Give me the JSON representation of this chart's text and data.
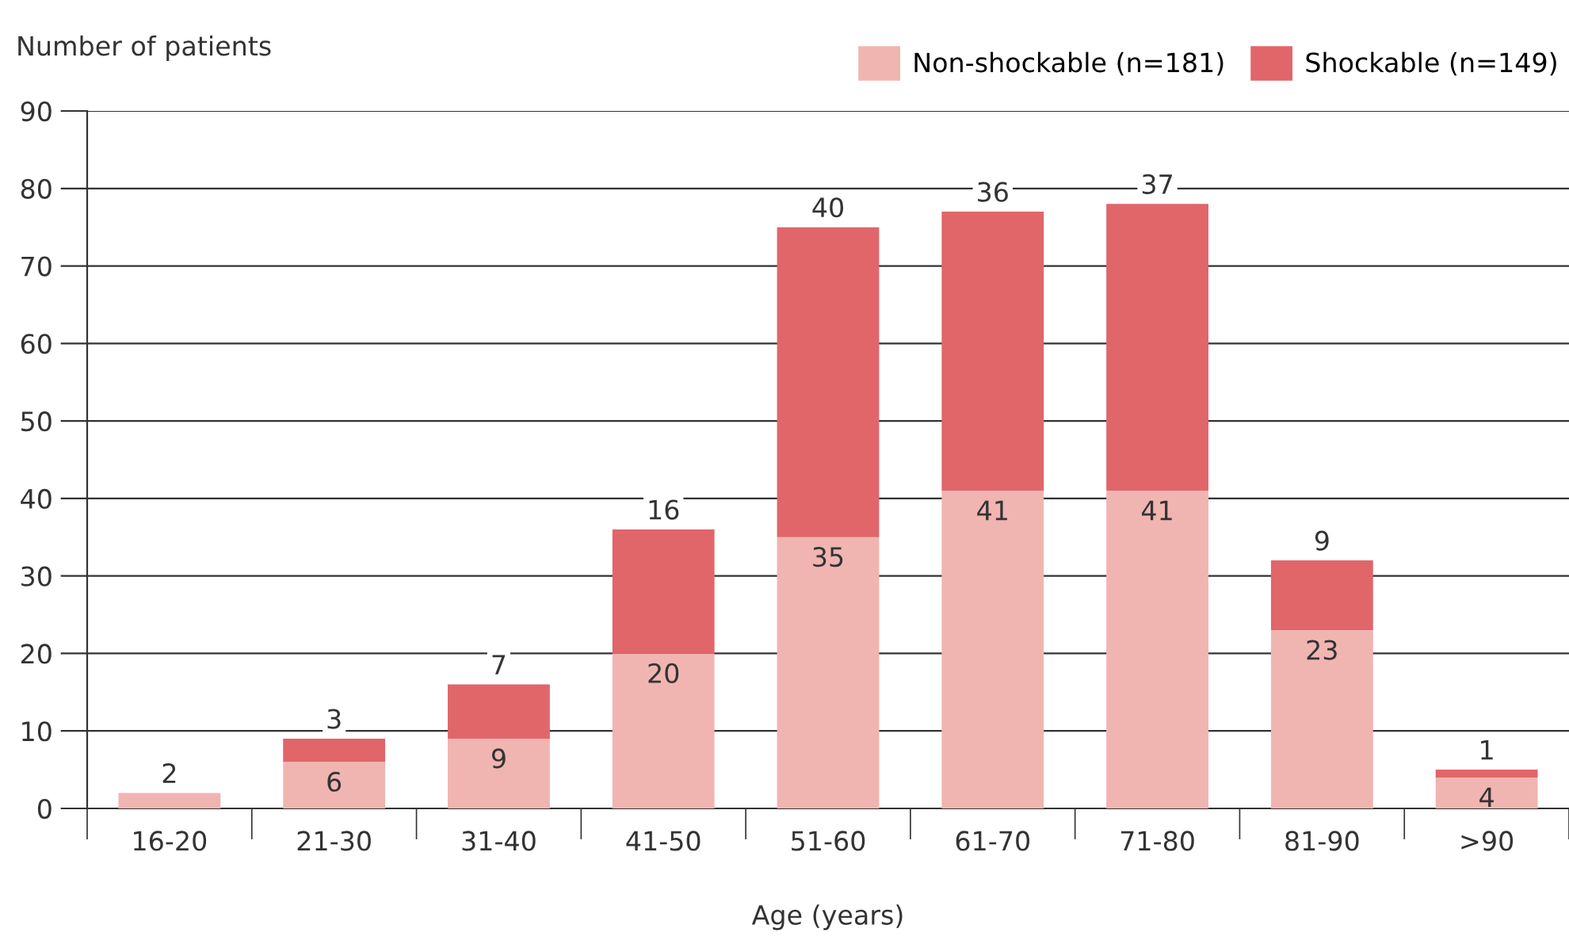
{
  "chart_data": {
    "type": "bar",
    "stacked": true,
    "xlabel": "Age (years)",
    "ylabel": "Number of patients",
    "categories": [
      "16-20",
      "21-30",
      "31-40",
      "41-50",
      "51-60",
      "61-70",
      "71-80",
      "81-90",
      ">90"
    ],
    "series": [
      {
        "name": "Non-shockable (n=181)",
        "color": "#f0b5b1",
        "values": [
          2,
          6,
          9,
          20,
          35,
          41,
          41,
          23,
          4
        ],
        "value_labels": [
          "2",
          "6",
          "9",
          "20",
          "35",
          "41",
          "41",
          "23",
          "4"
        ]
      },
      {
        "name": "Shockable (n=149)",
        "color": "#e0666a",
        "values": [
          0,
          3,
          7,
          16,
          40,
          36,
          37,
          9,
          1
        ],
        "value_labels": [
          null,
          "3",
          "7",
          "16",
          "40",
          "36",
          "37",
          "9",
          "1"
        ]
      }
    ],
    "ylim": [
      0,
      90
    ],
    "yticks": [
      0,
      10,
      20,
      30,
      40,
      50,
      60,
      70,
      80,
      90
    ],
    "grid": "y",
    "legend": "top right"
  }
}
